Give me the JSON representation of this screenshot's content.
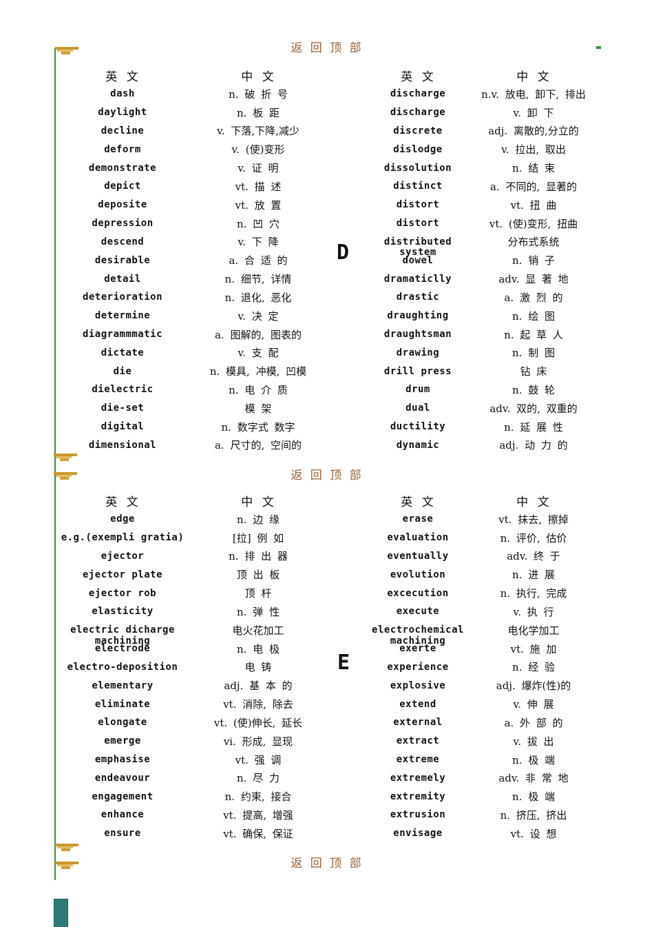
{
  "back_to_top_label": "返 回 顶 部",
  "table_headers": {
    "english": "英  文",
    "chinese": "中  文"
  },
  "colors": {
    "link_brown": "#996032",
    "line_green": "#3e8e41",
    "anchor_gold": "#c9992e",
    "anchor_gold_light": "#e2bc66",
    "corner_teal": "#2b7a73"
  },
  "icons": {
    "anchor": "bookmark-anchor-icon",
    "top_right_mark": "green-dash-icon"
  },
  "sections": [
    {
      "letter": "D",
      "left": [
        [
          "dash",
          "n. 破 折 号"
        ],
        [
          "daylight",
          "n. 板 距"
        ],
        [
          "decline",
          "v. 下落,下降,减少"
        ],
        [
          "deform",
          "v. (使)变形"
        ],
        [
          "demonstrate",
          "v. 证 明"
        ],
        [
          "depict",
          "vt. 描 述"
        ],
        [
          "deposite",
          "vt. 放 置"
        ],
        [
          "depression",
          "n. 凹 穴"
        ],
        [
          "descend",
          "v. 下 降"
        ],
        [
          "desirable",
          "a. 合 适 的"
        ],
        [
          "detail",
          "n. 细节, 详情"
        ],
        [
          "deterioration",
          "n. 退化, 恶化"
        ],
        [
          "determine",
          "v. 决 定"
        ],
        [
          "diagrammmatic",
          "a. 图解的, 图表的"
        ],
        [
          "dictate",
          "v. 支 配"
        ],
        [
          "die",
          "n. 模具, 冲模, 凹模"
        ],
        [
          "dielectric",
          "n. 电 介 质"
        ],
        [
          "die-set",
          "模 架"
        ],
        [
          "digital",
          "n. 数字式 数字"
        ],
        [
          "dimensional",
          "a. 尺寸的, 空间的"
        ]
      ],
      "right": [
        [
          "discharge",
          "n.v. 放电, 卸下, 排出"
        ],
        [
          "discharge",
          "v. 卸 下"
        ],
        [
          "discrete",
          "adj. 离散的,分立的"
        ],
        [
          "dislodge",
          "v. 拉出, 取出"
        ],
        [
          "dissolution",
          "n. 结 束"
        ],
        [
          "distinct",
          "a. 不同的, 显著的"
        ],
        [
          "distort",
          "vt. 扭 曲"
        ],
        [
          "distort",
          "vt. (使)变形, 扭曲"
        ],
        [
          "distributed\nsystem",
          "分布式系统"
        ],
        [
          "dowel",
          "n. 销 子"
        ],
        [
          "dramaticlly",
          "adv. 显 著 地"
        ],
        [
          "drastic",
          "a. 激 烈 的"
        ],
        [
          "draughting",
          "n. 绘 图"
        ],
        [
          "draughtsman",
          "n. 起 草 人"
        ],
        [
          "drawing",
          "n. 制 图"
        ],
        [
          "drill press",
          "钻 床"
        ],
        [
          "drum",
          "n. 鼓 轮"
        ],
        [
          "dual",
          "adv. 双的, 双重的"
        ],
        [
          "ductility",
          "n. 延 展 性"
        ],
        [
          "dynamic",
          "adj. 动 力 的"
        ]
      ]
    },
    {
      "letter": "E",
      "left": [
        [
          "edge",
          "n. 边 缘"
        ],
        [
          "e.g.(exempli gratia)",
          "[拉] 例 如"
        ],
        [
          "ejector",
          "n. 排 出 器"
        ],
        [
          "ejector plate",
          "顶 出 板"
        ],
        [
          "ejector rob",
          "顶 杆"
        ],
        [
          "elasticity",
          "n. 弹 性"
        ],
        [
          "electric dicharge\nmachining",
          "电火花加工"
        ],
        [
          "electrode",
          "n. 电 极"
        ],
        [
          "electro-deposition",
          "电 铸"
        ],
        [
          "elementary",
          "adj. 基 本 的"
        ],
        [
          "eliminate",
          "vt. 消除, 除去"
        ],
        [
          "elongate",
          "vt. (使)伸长, 延长"
        ],
        [
          "emerge",
          "vi. 形成, 显现"
        ],
        [
          "emphasise",
          "vt. 强 调"
        ],
        [
          "endeavour",
          "n. 尽 力"
        ],
        [
          "engagement",
          "n. 约束, 接合"
        ],
        [
          "enhance",
          "vt. 提高, 增强"
        ],
        [
          "ensure",
          "vt. 确保, 保证"
        ]
      ],
      "right": [
        [
          "erase",
          "vt. 抹去, 擦掉"
        ],
        [
          "evaluation",
          "n. 评价, 估价"
        ],
        [
          "eventually",
          "adv. 终 于"
        ],
        [
          "evolution",
          "n. 进 展"
        ],
        [
          "excecution",
          "n. 执行, 完成"
        ],
        [
          "execute",
          "v. 执 行"
        ],
        [
          "electrochemical\nmachining",
          "电化学加工"
        ],
        [
          "exerte",
          "vt. 施 加"
        ],
        [
          "experience",
          "n. 经 验"
        ],
        [
          "explosive",
          "adj. 爆炸(性)的"
        ],
        [
          "extend",
          "v. 伸 展"
        ],
        [
          "external",
          "a. 外 部 的"
        ],
        [
          "extract",
          "v. 拔 出"
        ],
        [
          "extreme",
          "n. 极 端"
        ],
        [
          "extremely",
          "adv. 非 常 地"
        ],
        [
          "extremity",
          "n. 极 端"
        ],
        [
          "extrusion",
          "n. 挤压, 挤出"
        ],
        [
          "envisage",
          "vt. 设 想"
        ]
      ]
    }
  ]
}
